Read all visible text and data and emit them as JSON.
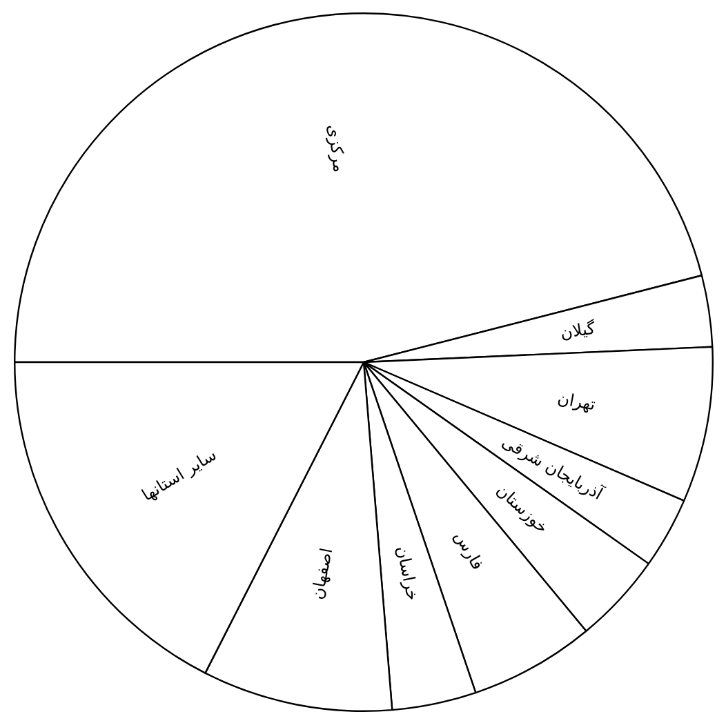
{
  "chart_data": {
    "type": "pie",
    "categories": [
      "مرکزی",
      "گیلان",
      "تهران",
      "آذربایجان شرقی",
      "خوزستان",
      "فارس",
      "خراسان",
      "اصفهان",
      "سایر استانها"
    ],
    "values": [
      46.0,
      3.3,
      7.2,
      3.3,
      4.2,
      5.8,
      3.9,
      8.8,
      17.5
    ],
    "colors": [
      "#ffffff",
      "#ffffff",
      "#ffffff",
      "#ffffff",
      "#ffffff",
      "#ffffff",
      "#ffffff",
      "#ffffff",
      "#ffffff"
    ]
  }
}
